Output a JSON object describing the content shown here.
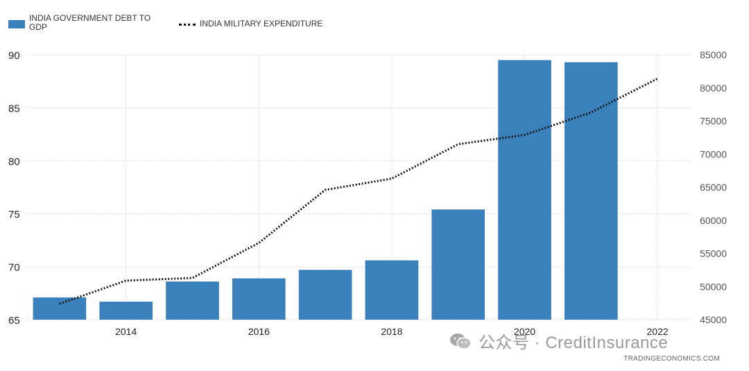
{
  "legend": {
    "debt_label": "INDIA GOVERNMENT DEBT TO GDP",
    "military_label": "INDIA MILITARY EXPENDITURE"
  },
  "watermark": {
    "text": "公众号 · CreditInsurance"
  },
  "source": "TRADINGECONOMICS.COM",
  "colors": {
    "bar": "#3a80ba",
    "line": "#111111",
    "grid": "#d9d9d9",
    "axis_text": "#444444"
  },
  "chart_data": {
    "type": "bar",
    "grid": true,
    "legend_position": "top-left",
    "series": [
      {
        "name": "INDIA GOVERNMENT DEBT TO GDP",
        "type": "bar",
        "axis": "left",
        "x": [
          2013,
          2014,
          2015,
          2016,
          2017,
          2018,
          2019,
          2020,
          2021
        ],
        "values": [
          67.1,
          66.7,
          68.6,
          68.9,
          69.7,
          70.6,
          75.4,
          89.5,
          89.3
        ]
      },
      {
        "name": "INDIA MILITARY EXPENDITURE",
        "type": "line",
        "axis": "right",
        "x": [
          2013,
          2014,
          2015,
          2016,
          2017,
          2018,
          2019,
          2020,
          2021,
          2022
        ],
        "values": [
          47400,
          50900,
          51300,
          56600,
          64600,
          66300,
          71500,
          72900,
          76300,
          81400
        ]
      }
    ],
    "x_ticks": [
      2014,
      2016,
      2018,
      2020,
      2022
    ],
    "xlim": [
      2012.5,
      2022.5
    ],
    "y_left": {
      "lim": [
        65,
        90
      ],
      "ticks": [
        65,
        70,
        75,
        80,
        85,
        90
      ]
    },
    "y_right": {
      "lim": [
        45000,
        85000
      ],
      "ticks": [
        45000,
        50000,
        55000,
        60000,
        65000,
        70000,
        75000,
        80000,
        85000
      ]
    }
  }
}
